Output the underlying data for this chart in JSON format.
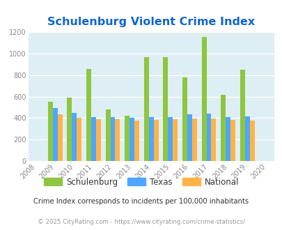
{
  "title": "Schulenburg Violent Crime Index",
  "years": [
    2008,
    2009,
    2010,
    2011,
    2012,
    2013,
    2014,
    2015,
    2016,
    2017,
    2018,
    2019,
    2020
  ],
  "schulenburg": [
    null,
    555,
    590,
    855,
    480,
    420,
    968,
    968,
    782,
    1155,
    615,
    852,
    null
  ],
  "texas": [
    null,
    493,
    450,
    410,
    410,
    405,
    410,
    410,
    435,
    443,
    410,
    413,
    null
  ],
  "national": [
    null,
    432,
    403,
    391,
    390,
    375,
    383,
    390,
    398,
    398,
    383,
    375,
    null
  ],
  "color_schulenburg": "#8dc63f",
  "color_texas": "#4da6ff",
  "color_national": "#ffb347",
  "plot_bg": "#ddeef5",
  "title_color": "#1166cc",
  "ylim": [
    0,
    1200
  ],
  "yticks": [
    0,
    200,
    400,
    600,
    800,
    1000,
    1200
  ],
  "legend_labels": [
    "Schulenburg",
    "Texas",
    "National"
  ],
  "footnote1": "Crime Index corresponds to incidents per 100,000 inhabitants",
  "footnote2": "© 2025 CityRating.com - https://www.cityrating.com/crime-statistics/",
  "bar_width": 0.25
}
